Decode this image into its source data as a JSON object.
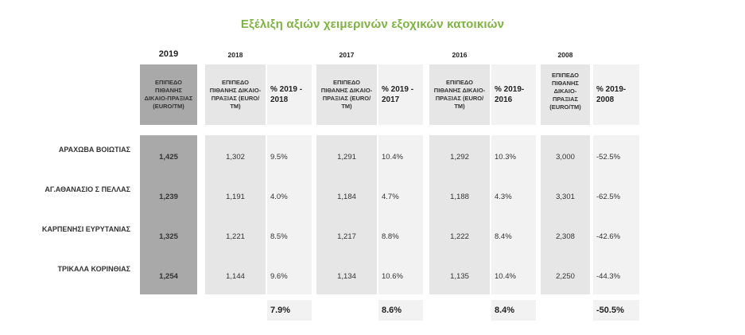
{
  "title": "Εξέλιξη αξιών χειμερινών εξοχικών κατοικιών",
  "years": [
    "2019",
    "2018",
    "2017",
    "2016",
    "2008"
  ],
  "value_header": "ΕΠΙΠΕΔΟ ΠΙΘΑΝΗΣ ΔΙΚΑΙΟ-ΠΡΑΞΙΑΣ (euro/τμ)",
  "pct_headers": [
    "% 2019 - 2018",
    "% 2019 - 2017",
    "% 2019-2016",
    "% 2019-2008"
  ],
  "rows": [
    {
      "label": "ΑΡΑΧΩΒΑ ΒΟΙΩΤΙΑΣ",
      "v2019": "1,425",
      "v2018": "1,302",
      "p2018": "9.5%",
      "v2017": "1,291",
      "p2017": "10.4%",
      "v2016": "1,292",
      "p2016": "10.3%",
      "v2008": "3,000",
      "p2008": "-52.5%"
    },
    {
      "label": "ΑΓ.ΑΘΑΝΑΣΙΟ Σ ΠΕΛΛΑΣ",
      "v2019": "1,239",
      "v2018": "1,191",
      "p2018": "4.0%",
      "v2017": "1,184",
      "p2017": "4.7%",
      "v2016": "1,188",
      "p2016": "4.3%",
      "v2008": "3,301",
      "p2008": "-62.5%"
    },
    {
      "label": "ΚΑΡΠΕΝΗΣΙ ΕΥΡΥΤΑΝΙΑΣ",
      "v2019": "1,325",
      "v2018": "1,221",
      "p2018": "8.5%",
      "v2017": "1,217",
      "p2017": "8.8%",
      "v2016": "1,222",
      "p2016": "8.4%",
      "v2008": "2,308",
      "p2008": "-42.6%"
    },
    {
      "label": "ΤΡΙΚΑΛΑ ΚΟΡΙΝΘΙΑΣ",
      "v2019": "1,254",
      "v2018": "1,144",
      "p2018": "9.6%",
      "v2017": "1,134",
      "p2017": "10.6%",
      "v2016": "1,135",
      "p2016": "10.4%",
      "v2008": "2,250",
      "p2008": "-44.3%"
    }
  ],
  "totals": {
    "p2018": "7.9%",
    "p2017": "8.6%",
    "p2016": "8.4%",
    "p2008": "-50.5%"
  },
  "colors": {
    "title": "#7db33f",
    "dark": "#a9a9a9",
    "mid": "#e6e6e6",
    "light": "#f2f2f2"
  },
  "chart_data": {
    "type": "table",
    "title": "Εξέλιξη αξιών χειμερινών εξοχικών κατοικιών",
    "columns": [
      "2019",
      "2018",
      "% 2019 - 2018",
      "2017",
      "% 2019 - 2017",
      "2016",
      "% 2019-2016",
      "2008",
      "% 2019-2008"
    ],
    "row_labels": [
      "ΑΡΑΧΩΒΑ ΒΟΙΩΤΙΑΣ",
      "ΑΓ.ΑΘΑΝΑΣΙΟ Σ ΠΕΛΛΑΣ",
      "ΚΑΡΠΕΝΗΣΙ ΕΥΡΥΤΑΝΙΑΣ",
      "ΤΡΙΚΑΛΑ ΚΟΡΙΝΘΙΑΣ"
    ],
    "values": [
      [
        1425,
        1302,
        9.5,
        1291,
        10.4,
        1292,
        10.3,
        3000,
        -52.5
      ],
      [
        1239,
        1191,
        4.0,
        1184,
        4.7,
        1188,
        4.3,
        3301,
        -62.5
      ],
      [
        1325,
        1221,
        8.5,
        1217,
        8.8,
        1222,
        8.4,
        2308,
        -42.6
      ],
      [
        1254,
        1144,
        9.6,
        1134,
        10.6,
        1135,
        10.4,
        2250,
        -44.3
      ]
    ],
    "totals": [
      7.9,
      8.6,
      8.4,
      -50.5
    ]
  }
}
